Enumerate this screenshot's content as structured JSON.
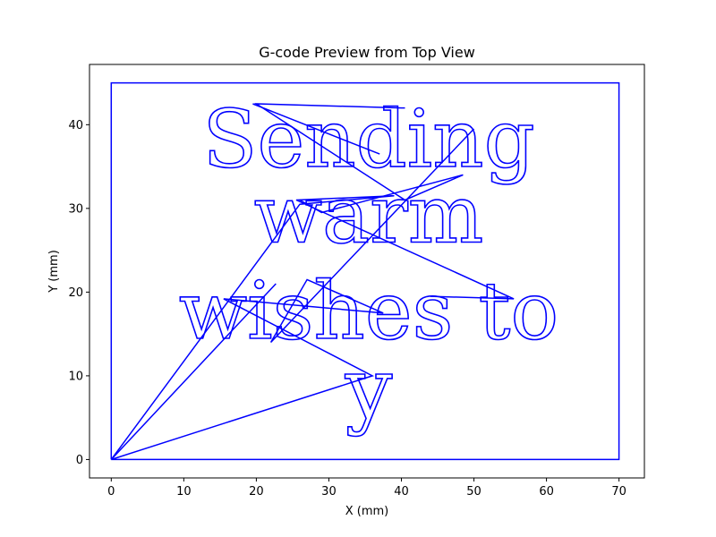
{
  "chart_data": {
    "type": "line",
    "title": "G-code Preview from Top View",
    "xlabel": "X (mm)",
    "ylabel": "Y (mm)",
    "xlim": [
      -3,
      73.5
    ],
    "ylim": [
      -2.2,
      47.2
    ],
    "xticks": [
      0,
      10,
      20,
      30,
      40,
      50,
      60,
      70
    ],
    "yticks": [
      0,
      10,
      20,
      30,
      40
    ],
    "grid": false,
    "color": "#0000ff",
    "series": [
      {
        "paths": [
          [
            [
              0,
              0
            ],
            [
              0,
              45
            ],
            [
              70,
              45
            ],
            [
              70,
              0
            ],
            [
              0,
              0
            ]
          ],
          [
            [
              0,
              0
            ],
            [
              22.7,
              21
            ],
            [
              22.7,
              21
            ]
          ],
          [
            [
              0,
              0
            ],
            [
              36,
              10
            ],
            [
              15.5,
              19.2
            ],
            [
              37.5,
              17.5
            ],
            [
              27,
              21.5
            ],
            [
              22,
              14
            ],
            [
              50,
              39.5
            ]
          ],
          [
            [
              0,
              0
            ],
            [
              26,
              30.5
            ],
            [
              39,
              31.5
            ],
            [
              25.5,
              31
            ],
            [
              55.5,
              19.2
            ],
            [
              44,
              19.5
            ]
          ],
          [
            [
              26,
              31
            ],
            [
              29,
              29.5
            ],
            [
              48.5,
              34
            ],
            [
              40.5,
              31
            ],
            [
              20,
              42.5
            ],
            [
              40,
              42
            ],
            [
              40.5,
              42
            ]
          ],
          [
            [
              19.5,
              42.5
            ],
            [
              37,
              36.5
            ]
          ]
        ]
      }
    ],
    "text_lines": [
      {
        "text": "Sending",
        "x": 35.5,
        "y": 35
      },
      {
        "text": "warm",
        "x": 35.5,
        "y": 26
      },
      {
        "text": "wishes to",
        "x": 35.5,
        "y": 14.5
      },
      {
        "text": "y",
        "x": 35.5,
        "y": 5
      }
    ]
  }
}
